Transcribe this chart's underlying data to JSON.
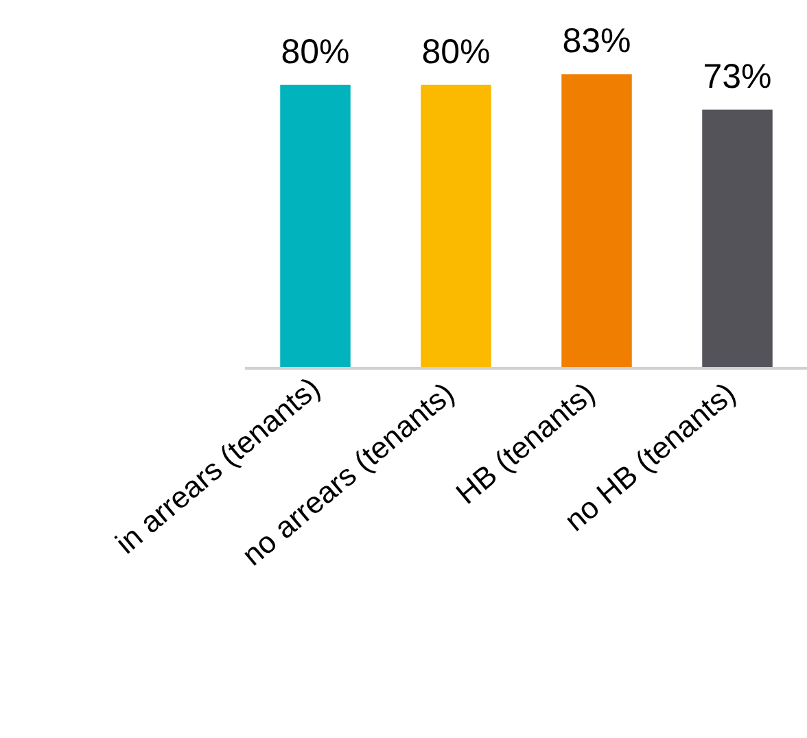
{
  "chart_data": {
    "type": "bar",
    "categories": [
      "in arrears (tenants)",
      "no arrears  (tenants)",
      "HB  (tenants)",
      "no HB  (tenants)"
    ],
    "values": [
      80,
      80,
      83,
      73
    ],
    "colors": [
      "#00b3bd",
      "#fbb900",
      "#f07e00",
      "#55535a"
    ],
    "value_labels": [
      "80%",
      "80%",
      "83%",
      "73%"
    ],
    "grid": false
  }
}
